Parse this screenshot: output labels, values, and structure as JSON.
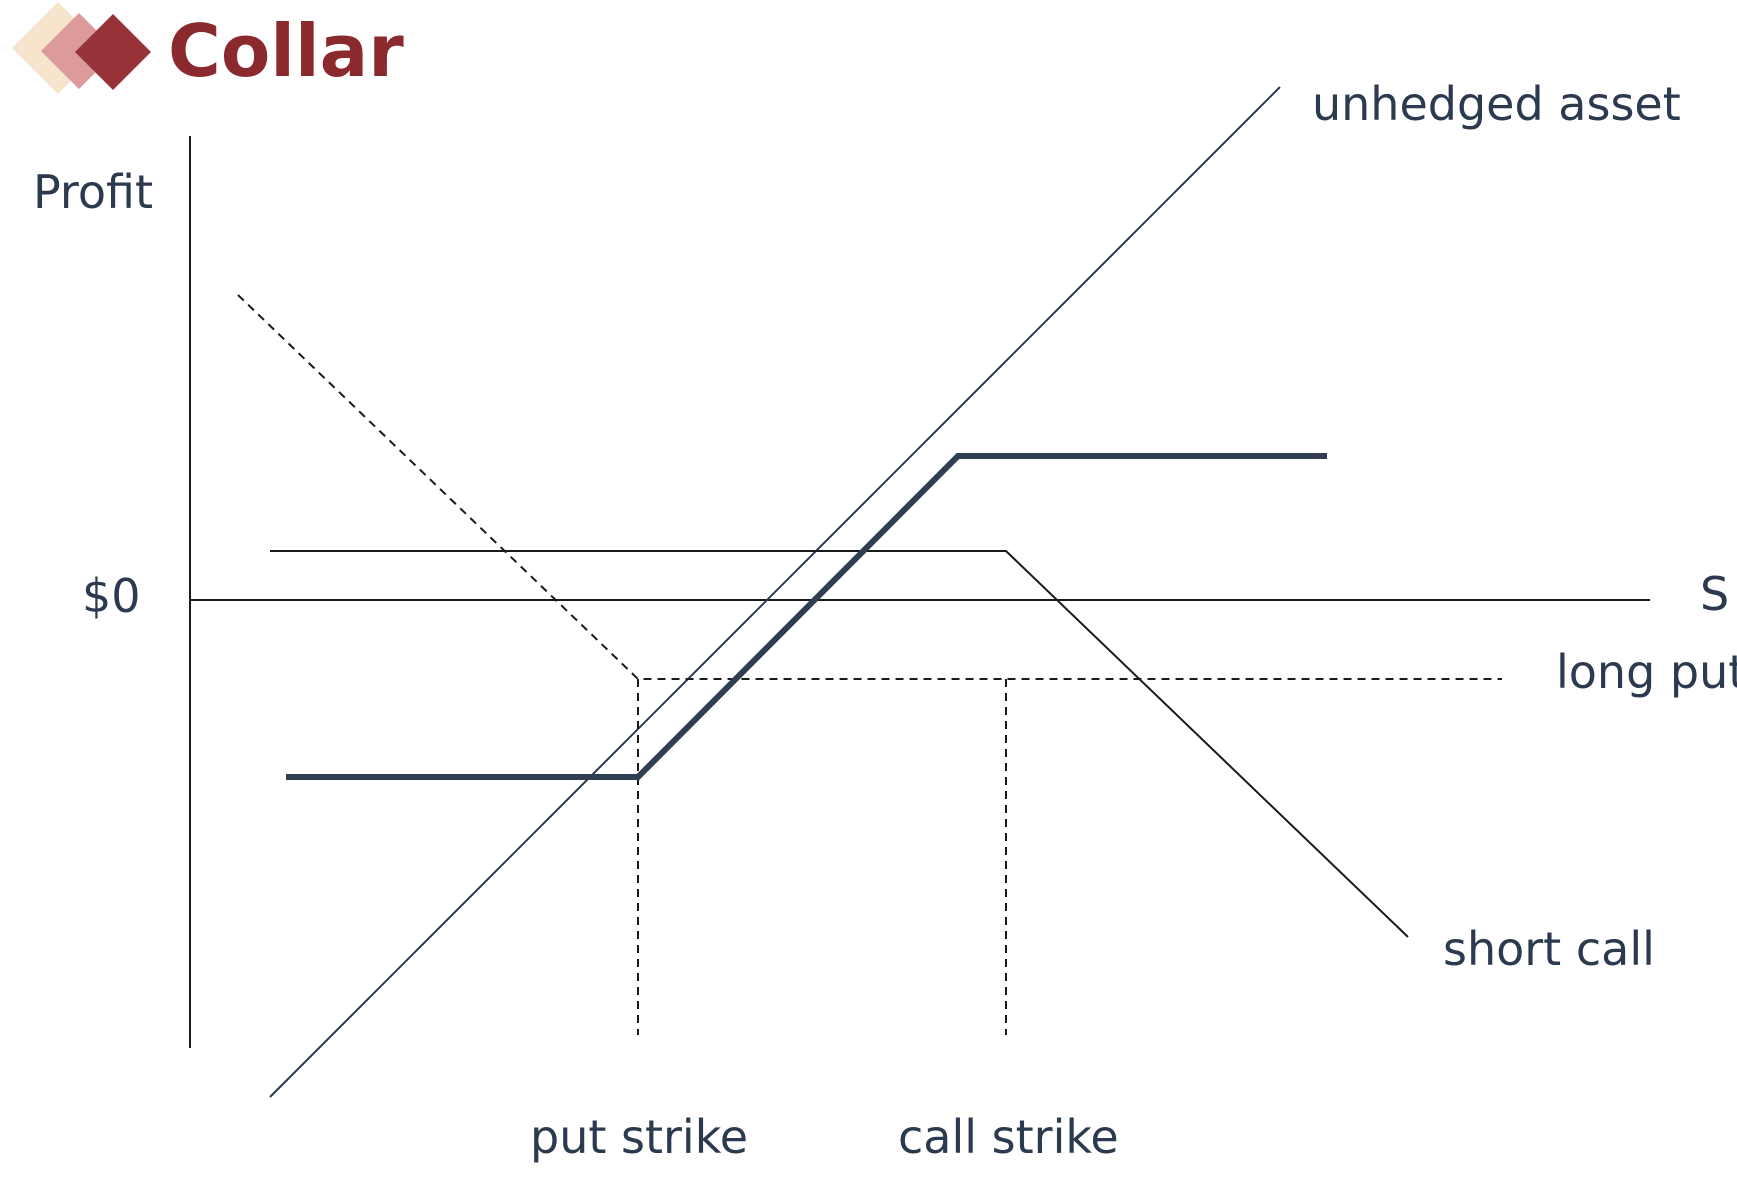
{
  "slide": {
    "title": "Collar",
    "title_color": "#8b2a2e",
    "logo": {
      "icon": "stacked-diamonds-icon",
      "colors": [
        "#f6e5cc",
        "#dc9a9a",
        "#96343a"
      ]
    }
  },
  "diagram": {
    "y_axis_label": "Profit",
    "x_axis_label": "S",
    "zero_label": "$0",
    "curves": {
      "unhedged_asset": "unhedged asset",
      "long_put": "long put",
      "short_call": "short call"
    },
    "strikes": {
      "put": "put strike",
      "call": "call strike"
    },
    "colors": {
      "ink": "#2b3a4e",
      "axis": "#1a1a1a",
      "collar": "#2f3e50"
    }
  }
}
